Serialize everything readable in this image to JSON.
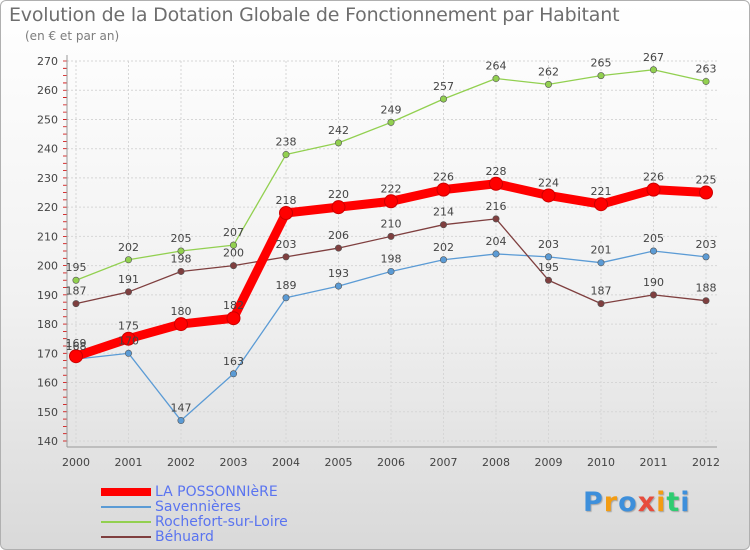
{
  "chart_data": {
    "type": "line",
    "title": "Evolution de la Dotation Globale de Fonctionnement par Habitant",
    "subtitle": "(en € et par an)",
    "xlabel": "",
    "ylabel": "",
    "categories": [
      "2000",
      "2001",
      "2002",
      "2003",
      "2004",
      "2005",
      "2006",
      "2007",
      "2008",
      "2009",
      "2010",
      "2011",
      "2012"
    ],
    "ylim": [
      140,
      270
    ],
    "yticks": [
      140,
      150,
      160,
      170,
      180,
      190,
      200,
      210,
      220,
      230,
      240,
      250,
      260,
      270
    ],
    "grid": true,
    "legend_position": "bottom-left",
    "series": [
      {
        "name": "LA POSSONNIèRE",
        "color": "#ff0000",
        "values": [
          169,
          175,
          180,
          182,
          218,
          220,
          222,
          226,
          228,
          224,
          221,
          226,
          225
        ]
      },
      {
        "name": "Savennières",
        "color": "#5b9bd5",
        "values": [
          168,
          170,
          147,
          163,
          189,
          193,
          198,
          202,
          204,
          203,
          201,
          205,
          203
        ]
      },
      {
        "name": "Rochefort-sur-Loire",
        "color": "#92d050",
        "values": [
          195,
          202,
          205,
          207,
          238,
          242,
          249,
          257,
          264,
          262,
          265,
          267,
          263
        ]
      },
      {
        "name": "Béhuard",
        "color": "#7f3f3f",
        "values": [
          187,
          191,
          198,
          200,
          203,
          206,
          210,
          214,
          216,
          195,
          187,
          190,
          188
        ]
      }
    ]
  },
  "logo": {
    "text": "Proxiti",
    "letters": [
      "P",
      "r",
      "o",
      "x",
      "i",
      "t",
      "i"
    ],
    "colors": [
      "#3d8fdb",
      "#f39c12",
      "#3d8fdb",
      "#e74c3c",
      "#f39c12",
      "#2ecc71",
      "#3d8fdb"
    ]
  }
}
